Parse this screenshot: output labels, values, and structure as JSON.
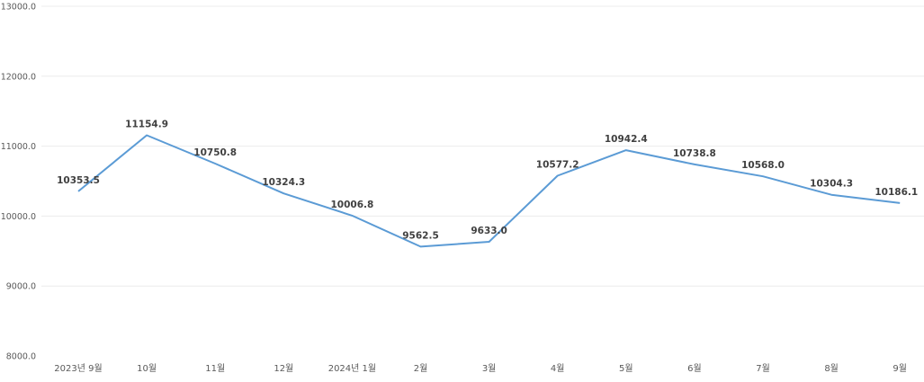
{
  "chart_data": {
    "type": "line",
    "title": "",
    "xlabel": "",
    "ylabel": "",
    "categories": [
      "2023년 9월",
      "10월",
      "11월",
      "12월",
      "2024년 1월",
      "2월",
      "3월",
      "4월",
      "5월",
      "6월",
      "7월",
      "8월",
      "9월"
    ],
    "values": [
      10353.5,
      11154.9,
      10750.8,
      10324.3,
      10006.8,
      9562.5,
      9633.0,
      10577.2,
      10942.4,
      10738.8,
      10568.0,
      10304.3,
      10186.1
    ],
    "value_labels": [
      "10353.5",
      "11154.9",
      "10750.8",
      "10324.3",
      "10006.8",
      "9562.5",
      "9633.0",
      "10577.2",
      "10942.4",
      "10738.8",
      "10568.0",
      "10304.3",
      "10186.1"
    ],
    "ylim": [
      8000,
      13000
    ],
    "yticks": [
      "8000.0",
      "9000.0",
      "10000.0",
      "11000.0",
      "12000.0",
      "13000.0"
    ],
    "grid": true,
    "legend": "none",
    "line_color": "#5b9bd5"
  }
}
